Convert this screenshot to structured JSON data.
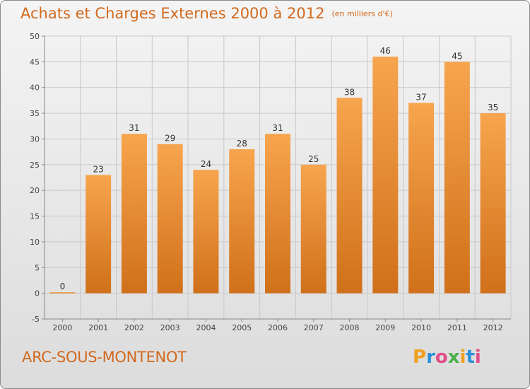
{
  "header": {
    "title": "Achats et Charges Externes 2000 à 2012",
    "subtitle": "(en milliers d'€)"
  },
  "footer": {
    "commune": "ARC-SOUS-MONTENOT",
    "logo_text": "Proxiti"
  },
  "colors": {
    "title": "#d2691e",
    "bar_top": "#f7a54e",
    "bar_bottom": "#d0701a",
    "grid": "#c8c8c8"
  },
  "chart_data": {
    "type": "bar",
    "title": "Achats et Charges Externes 2000 à 2012",
    "subtitle": "(en milliers d'€)",
    "categories": [
      "2000",
      "2001",
      "2002",
      "2003",
      "2004",
      "2005",
      "2006",
      "2007",
      "2008",
      "2009",
      "2010",
      "2011",
      "2012"
    ],
    "values": [
      0,
      23,
      31,
      29,
      24,
      28,
      31,
      25,
      38,
      46,
      37,
      45,
      35
    ],
    "y_ticks": [
      -5,
      0,
      5,
      10,
      15,
      20,
      25,
      30,
      35,
      40,
      45,
      50
    ],
    "ylim": [
      -5,
      50
    ],
    "grid": true,
    "xlabel": "",
    "ylabel": ""
  }
}
